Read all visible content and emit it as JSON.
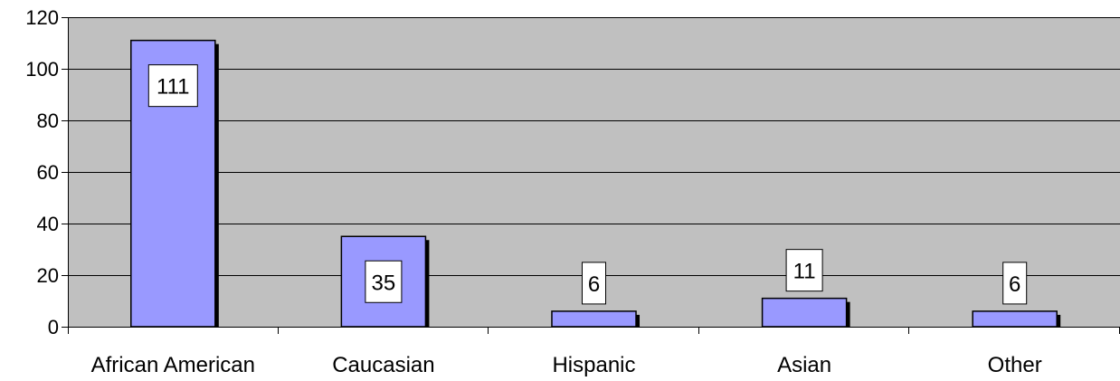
{
  "chart_data": {
    "type": "bar",
    "categories": [
      "African American",
      "Caucasian",
      "Hispanic",
      "Asian",
      "Other"
    ],
    "values": [
      111,
      35,
      6,
      11,
      6
    ],
    "data_labels": [
      "111",
      "35",
      "6",
      "11",
      "6"
    ],
    "ylim": [
      0,
      120
    ],
    "yticks": [
      0,
      20,
      40,
      60,
      80,
      100,
      120
    ],
    "ytick_labels": [
      "0",
      "20",
      "40",
      "60",
      "80",
      "100",
      "120"
    ],
    "grid": true,
    "legend": false,
    "colors": {
      "plot_background": "#c0c0c0",
      "bar_fill": "#9999ff",
      "bar_shadow": "#000000",
      "gridline": "#000000",
      "label_box": "#ffffff"
    }
  }
}
